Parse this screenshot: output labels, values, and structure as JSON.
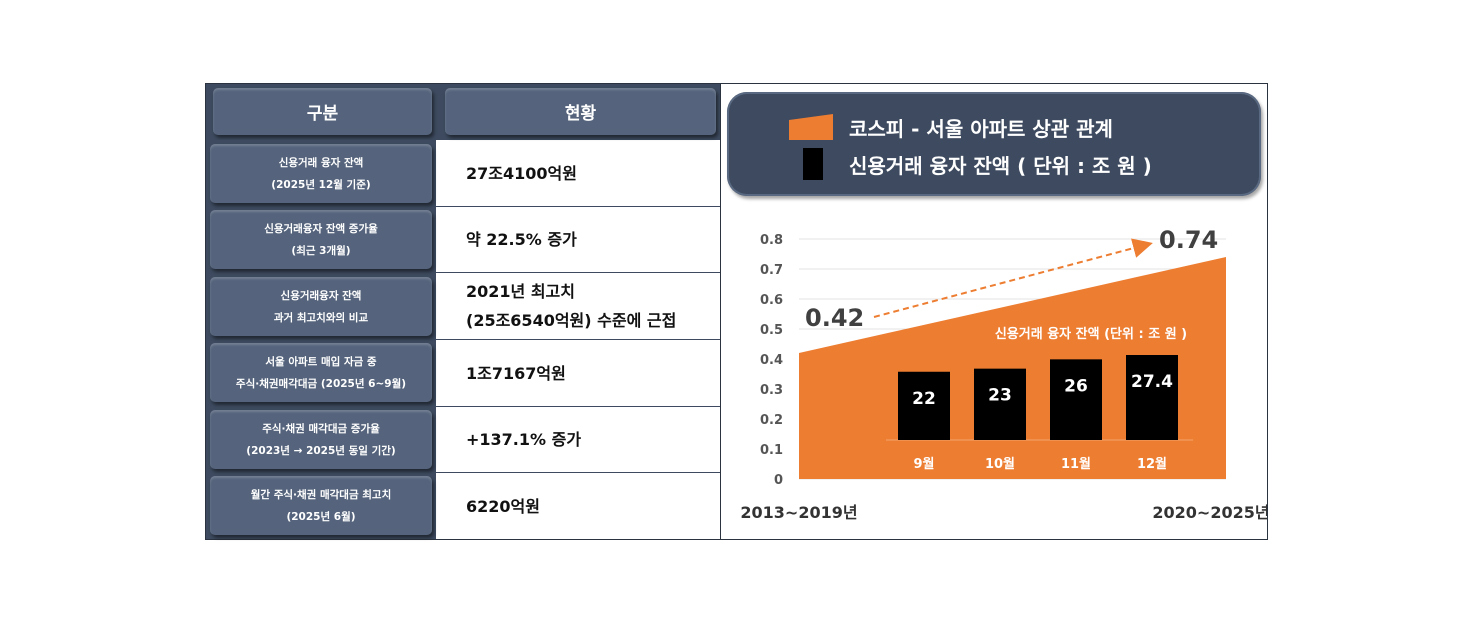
{
  "table": {
    "headers": [
      "구분",
      "현황"
    ],
    "rows": [
      {
        "label1": "신용거래 융자 잔액",
        "label2": "(2025년 12월 기준)",
        "value1": "27조4100억원",
        "value2": ""
      },
      {
        "label1": "신용거래융자 잔액 증가율",
        "label2": "(최근 3개월)",
        "value1": "약 22.5% 증가",
        "value2": ""
      },
      {
        "label1": "신용거래융자 잔액",
        "label2": "과거 최고치와의 비교",
        "value1": "2021년 최고치",
        "value2": "(25조6540억원) 수준에 근접"
      },
      {
        "label1": "서울 아파트 매입 자금 중",
        "label2": "주식·채권매각대금 (2025년 6~9월)",
        "value1": "1조7167억원",
        "value2": ""
      },
      {
        "label1": "주식·채권 매각대금 증가율",
        "label2": "(2023년 → 2025년 동일 기간)",
        "value1": "+137.1% 증가",
        "value2": ""
      },
      {
        "label1": "월간 주식·채권 매각대금 최고치",
        "label2": "(2025년 6월)",
        "value1": "6220억원",
        "value2": ""
      }
    ]
  },
  "legend": {
    "area_label": "코스피 - 서울 아파트 상관 관계",
    "bar_label": "신용거래 융자 잔액 ( 단위 : 조 원 )",
    "area_color": "#ed7d31",
    "bar_color": "#000000"
  },
  "chart_data": [
    {
      "type": "area",
      "x": [
        "2013~2019년",
        "2020~2025년"
      ],
      "values": [
        0.42,
        0.74
      ],
      "data_labels": [
        "0.42",
        "0.74"
      ],
      "ylim": [
        0,
        0.8
      ],
      "yticks": [
        "0",
        "0.1",
        "0.2",
        "0.3",
        "0.4",
        "0.5",
        "0.6",
        "0.7",
        "0.8"
      ],
      "grid": true,
      "trend_arrow": true,
      "color": "#ed7d31"
    },
    {
      "type": "bar",
      "title": "신용거래 융자 잔액 (단위 : 조 원 )",
      "categories": [
        "9월",
        "10월",
        "11월",
        "12월"
      ],
      "values": [
        22,
        23,
        26,
        27.4
      ],
      "data_labels": [
        "22",
        "23",
        "26",
        "27.4"
      ],
      "ylim": [
        0,
        30
      ],
      "color": "#000000"
    }
  ]
}
